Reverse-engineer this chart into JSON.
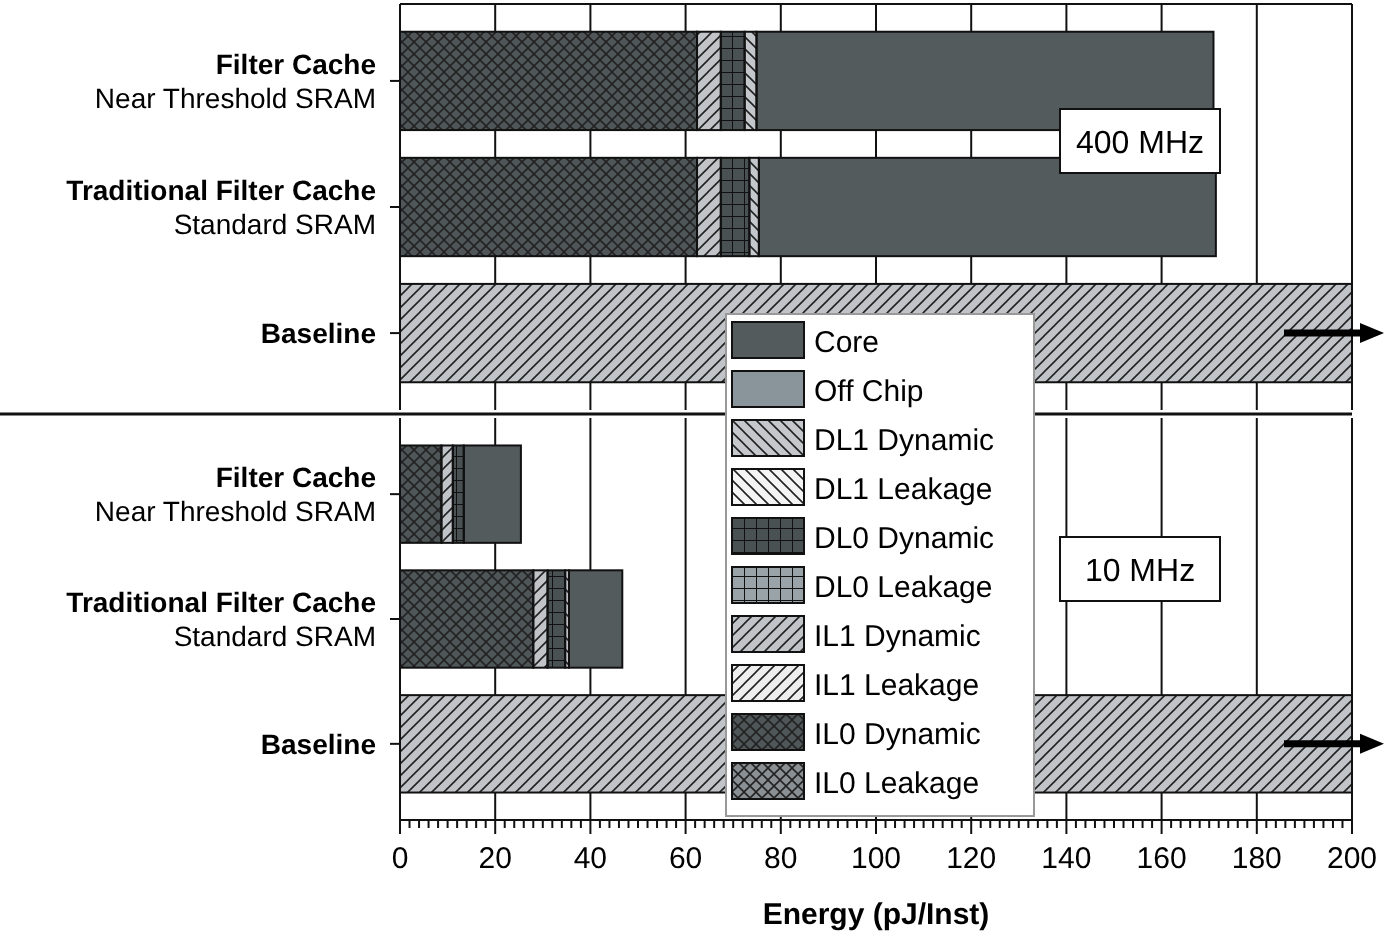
{
  "chart_data": [
    {
      "type": "bar",
      "orientation": "horizontal",
      "stacked": true,
      "categories": [
        "Filter Cache\nNear Threshold SRAM",
        "Traditional Filter Cache\nStandard SRAM",
        "Baseline"
      ],
      "xlim": [
        0,
        200
      ],
      "xticks": [
        0,
        20,
        40,
        60,
        80,
        100,
        120,
        140,
        160,
        180,
        200
      ],
      "tick_labels": "y",
      "grid": "x",
      "legend": "bottom",
      "series": [
        {
          "name": "IL0 Leakage",
          "color": "#8a8f93",
          "values": [
            0,
            0,
            0
          ]
        },
        {
          "name": "IL0 Dynamic",
          "color": "#4f5658",
          "values": [
            62.4,
            62.4,
            0
          ]
        },
        {
          "name": "IL1 Leakage",
          "color": "#eeeeee",
          "values": [
            0,
            0,
            0
          ]
        },
        {
          "name": "IL1 Dynamic",
          "color": "#c0c4c8",
          "values": [
            5,
            5,
            200
          ]
        },
        {
          "name": "DL0 Leakage",
          "color": "#9aa3a8",
          "values": [
            0,
            0,
            0
          ]
        },
        {
          "name": "DL0 Dynamic",
          "color": "#4a5153",
          "values": [
            5,
            6,
            0
          ]
        },
        {
          "name": "DL1 Leakage",
          "color": "#f4f4f4",
          "values": [
            0,
            0,
            0
          ]
        },
        {
          "name": "DL1 Dynamic",
          "color": "#c4c8cc",
          "values": [
            2.5,
            2,
            0
          ]
        },
        {
          "name": "Off Chip",
          "color": "#8a959b",
          "values": [
            0,
            0,
            0
          ]
        },
        {
          "name": "Core",
          "color": "#545b5d",
          "values": [
            96,
            96,
            0
          ]
        }
      ],
      "annotations": [
        "400 MHz"
      ]
    },
    {
      "type": "bar",
      "orientation": "horizontal",
      "stacked": true,
      "categories": [
        "Filter Cache\nNear Threshold SRAM",
        "Traditional Filter Cache\nStandard SRAM",
        "Baseline"
      ],
      "xlabel": "Energy (pJ/Inst)",
      "xlim": [
        0,
        200
      ],
      "xticks": [
        0,
        {
          "value": 2,
          "label": null
        },
        {
          "value": 4,
          "label": null
        },
        {
          "value": 6,
          "label": null
        },
        {
          "value": 8,
          "label": null
        },
        {
          "value": 10,
          "label": null
        },
        {
          "value": 12,
          "label": null
        },
        {
          "value": 14,
          "label": null
        },
        {
          "value": 16,
          "label": null
        },
        {
          "value": 18,
          "label": null
        },
        20,
        {
          "value": 22,
          "label": null
        },
        {
          "value": 24,
          "label": null
        },
        {
          "value": 26,
          "label": null
        },
        {
          "value": 28,
          "label": null
        },
        {
          "value": 30,
          "label": null
        },
        {
          "value": 32,
          "label": null
        },
        {
          "value": 34,
          "label": null
        },
        {
          "value": 36,
          "label": null
        },
        {
          "value": 38,
          "label": null
        },
        40,
        {
          "value": 42,
          "label": null
        },
        {
          "value": 44,
          "label": null
        },
        {
          "value": 46,
          "label": null
        },
        {
          "value": 48,
          "label": null
        },
        {
          "value": 50,
          "label": null
        },
        {
          "value": 52,
          "label": null
        },
        {
          "value": 54,
          "label": null
        },
        {
          "value": 56,
          "label": null
        },
        {
          "value": 58,
          "label": null
        },
        60,
        {
          "value": 62,
          "label": null
        },
        {
          "value": 64,
          "label": null
        },
        {
          "value": 66,
          "label": null
        },
        {
          "value": 68,
          "label": null
        },
        {
          "value": 70,
          "label": null
        },
        {
          "value": 72,
          "label": null
        },
        {
          "value": 74,
          "label": null
        },
        {
          "value": 76,
          "label": null
        },
        {
          "value": 78,
          "label": null
        },
        80,
        {
          "value": 82,
          "label": null
        },
        {
          "value": 84,
          "label": null
        },
        {
          "value": 86,
          "label": null
        },
        {
          "value": 88,
          "label": null
        },
        {
          "value": 90,
          "label": null
        },
        {
          "value": 92,
          "label": null
        },
        {
          "value": 94,
          "label": null
        },
        {
          "value": 96,
          "label": null
        },
        {
          "value": 98,
          "label": null
        },
        100,
        {
          "value": 102,
          "label": null
        },
        {
          "value": 104,
          "label": null
        },
        {
          "value": 106,
          "label": null
        },
        {
          "value": 108,
          "label": null
        },
        {
          "value": 110,
          "label": null
        },
        {
          "value": 112,
          "label": null
        },
        {
          "value": 114,
          "label": null
        },
        {
          "value": 116,
          "label": null
        },
        {
          "value": 118,
          "label": null
        },
        120,
        {
          "value": 122,
          "label": null
        },
        {
          "value": 124,
          "label": null
        },
        {
          "value": 126,
          "label": null
        },
        {
          "value": 128,
          "label": null
        },
        {
          "value": 130,
          "label": null
        },
        {
          "value": 132,
          "label": null
        },
        {
          "value": 134,
          "label": null
        },
        {
          "value": 136,
          "label": null
        },
        {
          "value": 138,
          "label": null
        },
        140,
        {
          "value": 142,
          "label": null
        },
        {
          "value": 144,
          "label": null
        },
        {
          "value": 146,
          "label": null
        },
        {
          "value": 148,
          "label": null
        },
        {
          "value": 150,
          "label": null
        },
        {
          "value": 152,
          "label": null
        },
        {
          "value": 154,
          "label": null
        },
        {
          "value": 156,
          "label": null
        },
        {
          "value": 158,
          "label": null
        },
        160,
        {
          "value": 162,
          "label": null
        },
        {
          "value": 164,
          "label": null
        },
        {
          "value": 166,
          "label": null
        },
        {
          "value": 168,
          "label": null
        },
        {
          "value": 170,
          "label": null
        },
        {
          "value": 172,
          "label": null
        },
        {
          "value": 174,
          "label": null
        },
        {
          "value": 176,
          "label": null
        },
        {
          "value": 178,
          "label": null
        },
        180,
        {
          "value": 182,
          "label": null
        },
        {
          "value": 184,
          "label": null
        },
        {
          "value": 186,
          "label": null
        },
        {
          "value": 188,
          "label": null
        },
        {
          "value": 190,
          "label": null
        },
        {
          "value": 192,
          "label": null
        },
        {
          "value": 194,
          "label": null
        },
        {
          "value": 196,
          "label": null
        },
        {
          "value": 198,
          "label": null
        },
        200
      ],
      "grid": "x",
      "series": [
        {
          "color": "#8a8f93",
          "values": [
            0,
            0,
            0
          ]
        },
        {
          "color": "#4f5658",
          "values": [
            8.7,
            28,
            0
          ]
        },
        {
          "color": "#ffffff",
          "values": [
            0,
            0,
            0
          ]
        },
        {
          "color": "#c0c4c8",
          "values": [
            2.4,
            3,
            200
          ]
        },
        {
          "color": "#9aa3a8",
          "values": [
            0,
            0,
            0
          ]
        },
        {
          "color": "#4a5153",
          "values": [
            2.3,
            3.7,
            0
          ]
        },
        {
          "color": "#fefefe",
          "values": [
            0,
            0,
            0
          ]
        },
        {
          "color": "#c4c8cc",
          "values": [
            0,
            0.8,
            0
          ]
        },
        {
          "color": "#8a959b",
          "values": [
            0,
            0,
            0
          ]
        },
        {
          "color": "#545b5d",
          "values": [
            12,
            11.2,
            0
          ]
        }
      ],
      "annotations": [
        "10 MHz"
      ]
    }
  ]
}
